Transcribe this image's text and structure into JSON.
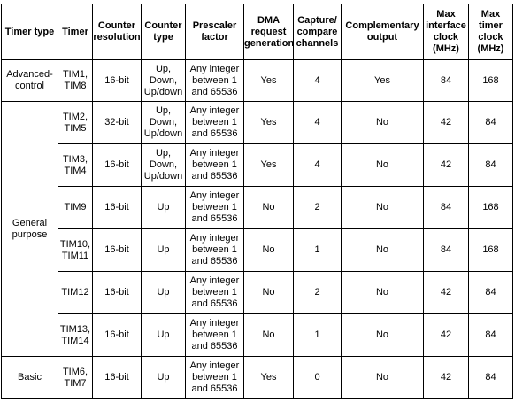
{
  "headers": [
    [
      "Timer type"
    ],
    [
      "Timer"
    ],
    [
      "Counter",
      "resolution"
    ],
    [
      "Counter",
      "type"
    ],
    [
      "Prescaler",
      "factor"
    ],
    [
      "DMA",
      "request",
      "generation"
    ],
    [
      "Capture/",
      "compare",
      "channels"
    ],
    [
      "Complementary",
      "output"
    ],
    [
      "Max",
      "interface",
      "clock",
      "(MHz)"
    ],
    [
      "Max",
      "timer",
      "clock",
      "(MHz)"
    ]
  ],
  "groups": [
    {
      "label": [
        "Advanced-",
        "control"
      ]
    },
    {
      "label": [
        "General",
        "purpose"
      ]
    },
    {
      "label": [
        "Basic"
      ]
    }
  ],
  "rows": [
    {
      "timer": [
        "TIM1,",
        "TIM8"
      ],
      "resolution": "16-bit",
      "counter_type": [
        "Up,",
        "Down,",
        "Up/down"
      ],
      "prescaler": [
        "Any integer",
        "between 1",
        "and 65536"
      ],
      "dma": "Yes",
      "channels": "4",
      "complementary": "Yes",
      "max_interface": "84",
      "max_timer": "168"
    },
    {
      "timer": [
        "TIM2,",
        "TIM5"
      ],
      "resolution": "32-bit",
      "counter_type": [
        "Up,",
        "Down,",
        "Up/down"
      ],
      "prescaler": [
        "Any integer",
        "between 1",
        "and 65536"
      ],
      "dma": "Yes",
      "channels": "4",
      "complementary": "No",
      "max_interface": "42",
      "max_timer": "84"
    },
    {
      "timer": [
        "TIM3,",
        "TIM4"
      ],
      "resolution": "16-bit",
      "counter_type": [
        "Up,",
        "Down,",
        "Up/down"
      ],
      "prescaler": [
        "Any integer",
        "between 1",
        "and 65536"
      ],
      "dma": "Yes",
      "channels": "4",
      "complementary": "No",
      "max_interface": "42",
      "max_timer": "84"
    },
    {
      "timer": [
        "TIM9"
      ],
      "resolution": "16-bit",
      "counter_type": [
        "Up"
      ],
      "prescaler": [
        "Any integer",
        "between 1",
        "and 65536"
      ],
      "dma": "No",
      "channels": "2",
      "complementary": "No",
      "max_interface": "84",
      "max_timer": "168"
    },
    {
      "timer": [
        "TIM10,",
        "TIM11"
      ],
      "resolution": "16-bit",
      "counter_type": [
        "Up"
      ],
      "prescaler": [
        "Any integer",
        "between 1",
        "and 65536"
      ],
      "dma": "No",
      "channels": "1",
      "complementary": "No",
      "max_interface": "84",
      "max_timer": "168"
    },
    {
      "timer": [
        "TIM12"
      ],
      "resolution": "16-bit",
      "counter_type": [
        "Up"
      ],
      "prescaler": [
        "Any integer",
        "between 1",
        "and 65536"
      ],
      "dma": "No",
      "channels": "2",
      "complementary": "No",
      "max_interface": "42",
      "max_timer": "84"
    },
    {
      "timer": [
        "TIM13,",
        "TIM14"
      ],
      "resolution": "16-bit",
      "counter_type": [
        "Up"
      ],
      "prescaler": [
        "Any integer",
        "between 1",
        "and 65536"
      ],
      "dma": "No",
      "channels": "1",
      "complementary": "No",
      "max_interface": "42",
      "max_timer": "84"
    },
    {
      "timer": [
        "TIM6,",
        "TIM7"
      ],
      "resolution": "16-bit",
      "counter_type": [
        "Up"
      ],
      "prescaler": [
        "Any integer",
        "between 1",
        "and 65536"
      ],
      "dma": "Yes",
      "channels": "0",
      "complementary": "No",
      "max_interface": "42",
      "max_timer": "84"
    }
  ]
}
